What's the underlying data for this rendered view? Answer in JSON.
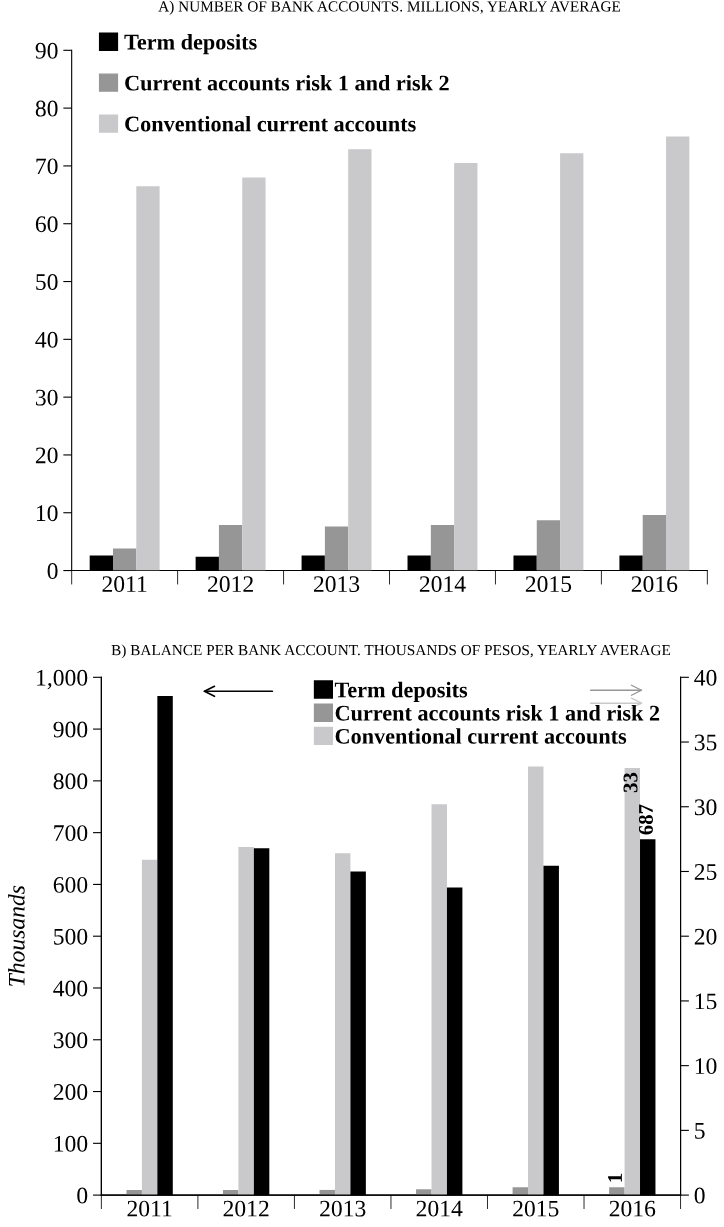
{
  "chart_data": [
    {
      "type": "bar",
      "title": "A) NUMBER OF BANK ACCOUNTS. MILLIONS, YEARLY AVERAGE",
      "categories": [
        "2011",
        "2012",
        "2013",
        "2014",
        "2015",
        "2016"
      ],
      "series": [
        {
          "name": "Term deposits",
          "color": "#000000",
          "values": [
            2.6,
            2.4,
            2.6,
            2.6,
            2.6,
            2.6
          ]
        },
        {
          "name": "Current accounts risk 1 and risk 2",
          "color": "#969696",
          "values": [
            3.8,
            7.9,
            7.6,
            7.9,
            8.7,
            9.6
          ]
        },
        {
          "name": "Conventional current accounts",
          "color": "#c9c9cb",
          "values": [
            66.5,
            68,
            72.9,
            70.5,
            72.2,
            75.1
          ]
        }
      ],
      "ylim": [
        0,
        90
      ],
      "yticks": [
        0,
        10,
        20,
        30,
        40,
        50,
        60,
        70,
        80,
        90
      ],
      "grid": false,
      "legend": "top left"
    },
    {
      "type": "bar",
      "title": "B) BALANCE PER BANK ACCOUNT. THOUSANDS OF PESOS, YEARLY AVERAGE",
      "ylabel": "Thousands",
      "categories": [
        "2011",
        "2012",
        "2013",
        "2014",
        "2015",
        "2016"
      ],
      "series": [
        {
          "name": "Current accounts risk 1 and risk 2",
          "color": "#969696",
          "axis": "y2",
          "values": [
            0.4,
            0.4,
            0.4,
            0.45,
            0.6,
            0.6
          ],
          "value_labels": [
            null,
            null,
            null,
            null,
            null,
            "1"
          ]
        },
        {
          "name": "Conventional current accounts",
          "color": "#c9c9cb",
          "axis": "y2",
          "values": [
            25.9,
            26.9,
            26.4,
            30.2,
            33.1,
            33
          ],
          "value_labels": [
            null,
            null,
            null,
            null,
            null,
            "33"
          ]
        },
        {
          "name": "Term deposits",
          "color": "#000000",
          "values": [
            964,
            670,
            625,
            594,
            636,
            687
          ],
          "value_labels": [
            null,
            null,
            null,
            null,
            null,
            "687"
          ]
        }
      ],
      "ylim": [
        0,
        1000
      ],
      "yticks": [
        0,
        100,
        200,
        300,
        400,
        500,
        600,
        700,
        800,
        900,
        {
          "value": 1000,
          "label": "1,000"
        }
      ],
      "y2lim": [
        0,
        40
      ],
      "y2ticks": [
        0,
        5,
        10,
        15,
        20,
        25,
        30,
        35,
        40
      ],
      "grid": false,
      "legend": "top right"
    }
  ]
}
